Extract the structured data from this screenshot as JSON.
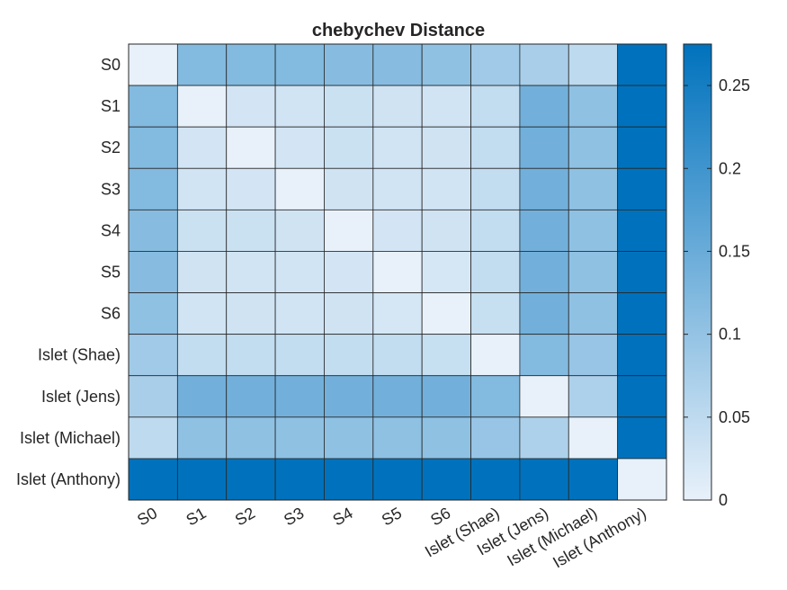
{
  "chart_data": {
    "type": "heatmap",
    "title": "chebychev Distance",
    "xlabel": "",
    "ylabel": "",
    "labels": [
      "S0",
      "S1",
      "S2",
      "S3",
      "S4",
      "S5",
      "S6",
      "Islet (Shae)",
      "Islet (Jens)",
      "Islet (Michael)",
      "Islet (Anthony)"
    ],
    "matrix": [
      [
        0.0,
        0.12,
        0.12,
        0.12,
        0.115,
        0.115,
        0.105,
        0.085,
        0.075,
        0.05,
        0.275
      ],
      [
        0.12,
        0.0,
        0.025,
        0.028,
        0.035,
        0.03,
        0.028,
        0.045,
        0.14,
        0.105,
        0.275
      ],
      [
        0.12,
        0.025,
        0.0,
        0.025,
        0.035,
        0.028,
        0.03,
        0.045,
        0.14,
        0.105,
        0.275
      ],
      [
        0.12,
        0.028,
        0.025,
        0.0,
        0.03,
        0.028,
        0.028,
        0.045,
        0.14,
        0.105,
        0.275
      ],
      [
        0.115,
        0.035,
        0.035,
        0.03,
        0.0,
        0.025,
        0.03,
        0.045,
        0.14,
        0.105,
        0.275
      ],
      [
        0.115,
        0.03,
        0.028,
        0.028,
        0.025,
        0.0,
        0.022,
        0.045,
        0.14,
        0.105,
        0.275
      ],
      [
        0.105,
        0.028,
        0.03,
        0.028,
        0.03,
        0.022,
        0.0,
        0.04,
        0.14,
        0.105,
        0.275
      ],
      [
        0.085,
        0.045,
        0.045,
        0.045,
        0.045,
        0.045,
        0.04,
        0.0,
        0.12,
        0.095,
        0.275
      ],
      [
        0.075,
        0.14,
        0.14,
        0.14,
        0.14,
        0.14,
        0.14,
        0.12,
        0.0,
        0.07,
        0.275
      ],
      [
        0.05,
        0.105,
        0.105,
        0.105,
        0.105,
        0.105,
        0.105,
        0.095,
        0.07,
        0.0,
        0.275
      ],
      [
        0.275,
        0.275,
        0.275,
        0.275,
        0.275,
        0.275,
        0.275,
        0.275,
        0.275,
        0.275,
        0.0
      ]
    ],
    "colorbar": {
      "ticks": [
        0,
        0.05,
        0.1,
        0.15,
        0.2,
        0.25
      ],
      "tick_labels": [
        "0",
        "0.05",
        "0.1",
        "0.15",
        "0.2",
        "0.25"
      ],
      "range": [
        0,
        0.275
      ]
    },
    "colormap": [
      "#e8f1fa",
      "#0072bd"
    ],
    "grid": true
  }
}
